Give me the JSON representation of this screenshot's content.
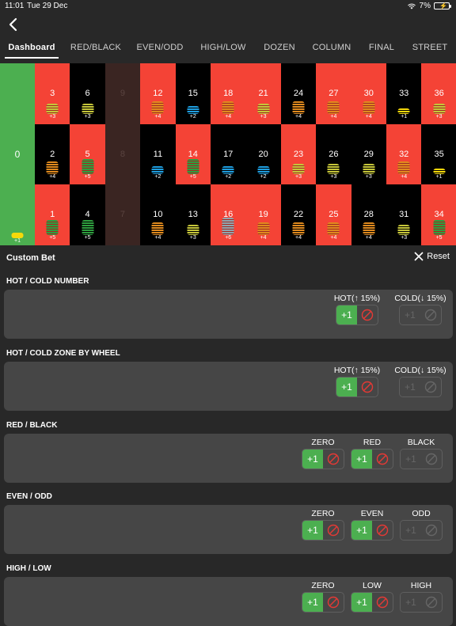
{
  "status": {
    "time": "11:01",
    "date": "Tue 29 Dec",
    "battery": "7%"
  },
  "tabs": [
    "Dashboard",
    "RED/BLACK",
    "EVEN/ODD",
    "HIGH/LOW",
    "DOZEN",
    "COLUMN",
    "FINAL",
    "STREET"
  ],
  "board": {
    "zero": {
      "number": "0",
      "chip_label": "+1",
      "chip_color": "#f5d90a"
    },
    "cells": [
      {
        "n": "3",
        "color": "red",
        "chip": "+3",
        "chip_color": "#c6c63a"
      },
      {
        "n": "6",
        "color": "black",
        "chip": "+3",
        "chip_color": "#c6c63a"
      },
      {
        "n": "9",
        "color": "dark",
        "chip": "",
        "chip_color": ""
      },
      {
        "n": "12",
        "color": "red",
        "chip": "+4",
        "chip_color": "#e08a1e"
      },
      {
        "n": "15",
        "color": "black",
        "chip": "+2",
        "chip_color": "#1e9ee0"
      },
      {
        "n": "18",
        "color": "red",
        "chip": "+4",
        "chip_color": "#e08a1e"
      },
      {
        "n": "21",
        "color": "red",
        "chip": "+3",
        "chip_color": "#c6c63a"
      },
      {
        "n": "24",
        "color": "black",
        "chip": "+4",
        "chip_color": "#e08a1e"
      },
      {
        "n": "27",
        "color": "red",
        "chip": "+4",
        "chip_color": "#e08a1e"
      },
      {
        "n": "30",
        "color": "red",
        "chip": "+4",
        "chip_color": "#e08a1e"
      },
      {
        "n": "33",
        "color": "black",
        "chip": "+1",
        "chip_color": "#f5d90a"
      },
      {
        "n": "36",
        "color": "red",
        "chip": "+3",
        "chip_color": "#c6c63a"
      },
      {
        "n": "2",
        "color": "black",
        "chip": "+4",
        "chip_color": "#e08a1e"
      },
      {
        "n": "5",
        "color": "red",
        "chip": "+5",
        "chip_color": "#2e9e3e"
      },
      {
        "n": "8",
        "color": "dark",
        "chip": "",
        "chip_color": ""
      },
      {
        "n": "11",
        "color": "black",
        "chip": "+2",
        "chip_color": "#1e9ee0"
      },
      {
        "n": "14",
        "color": "red",
        "chip": "+5",
        "chip_color": "#2e9e3e"
      },
      {
        "n": "17",
        "color": "black",
        "chip": "+2",
        "chip_color": "#1e9ee0"
      },
      {
        "n": "20",
        "color": "black",
        "chip": "+2",
        "chip_color": "#1e9ee0"
      },
      {
        "n": "23",
        "color": "red",
        "chip": "+3",
        "chip_color": "#c6c63a"
      },
      {
        "n": "26",
        "color": "black",
        "chip": "+3",
        "chip_color": "#c6c63a"
      },
      {
        "n": "29",
        "color": "black",
        "chip": "+3",
        "chip_color": "#c6c63a"
      },
      {
        "n": "32",
        "color": "red",
        "chip": "+4",
        "chip_color": "#e08a1e"
      },
      {
        "n": "35",
        "color": "black",
        "chip": "+1",
        "chip_color": "#f5d90a"
      },
      {
        "n": "1",
        "color": "red",
        "chip": "+5",
        "chip_color": "#2e9e3e"
      },
      {
        "n": "4",
        "color": "black",
        "chip": "+5",
        "chip_color": "#2e9e3e"
      },
      {
        "n": "7",
        "color": "dark",
        "chip": "",
        "chip_color": ""
      },
      {
        "n": "10",
        "color": "black",
        "chip": "+4",
        "chip_color": "#e08a1e"
      },
      {
        "n": "13",
        "color": "black",
        "chip": "+3",
        "chip_color": "#c6c63a"
      },
      {
        "n": "16",
        "color": "red",
        "chip": "+6",
        "chip_color": "#8fa6b0"
      },
      {
        "n": "19",
        "color": "red",
        "chip": "+4",
        "chip_color": "#e08a1e"
      },
      {
        "n": "22",
        "color": "black",
        "chip": "+4",
        "chip_color": "#e08a1e"
      },
      {
        "n": "25",
        "color": "red",
        "chip": "+4",
        "chip_color": "#e08a1e"
      },
      {
        "n": "28",
        "color": "black",
        "chip": "+4",
        "chip_color": "#e08a1e"
      },
      {
        "n": "31",
        "color": "black",
        "chip": "+3",
        "chip_color": "#c6c63a"
      },
      {
        "n": "34",
        "color": "red",
        "chip": "+5",
        "chip_color": "#2e9e3e"
      }
    ]
  },
  "custom_bet": {
    "title": "Custom Bet",
    "reset": "Reset"
  },
  "sections": [
    {
      "title": "HOT / COLD NUMBER",
      "groups": [
        {
          "label": "HOT(↑ 15%)",
          "active": true
        },
        {
          "label": "COLD(↓ 15%)",
          "active": false
        }
      ]
    },
    {
      "title": "HOT / COLD ZONE BY WHEEL",
      "groups": [
        {
          "label": "HOT(↑ 15%)",
          "active": true
        },
        {
          "label": "COLD(↓ 15%)",
          "active": false
        }
      ]
    },
    {
      "title": "RED / BLACK",
      "groups": [
        {
          "label": "ZERO",
          "active": true
        },
        {
          "label": "RED",
          "active": true
        },
        {
          "label": "BLACK",
          "active": false
        }
      ]
    },
    {
      "title": "EVEN / ODD",
      "groups": [
        {
          "label": "ZERO",
          "active": true
        },
        {
          "label": "EVEN",
          "active": true
        },
        {
          "label": "ODD",
          "active": false
        }
      ]
    },
    {
      "title": "HIGH / LOW",
      "groups": [
        {
          "label": "ZERO",
          "active": true
        },
        {
          "label": "LOW",
          "active": true
        },
        {
          "label": "HIGH",
          "active": false
        }
      ]
    }
  ],
  "button": {
    "plus": "+1"
  },
  "colors": {
    "green": "#4caf50",
    "red": "#f44336",
    "block_red": "#e53935"
  }
}
